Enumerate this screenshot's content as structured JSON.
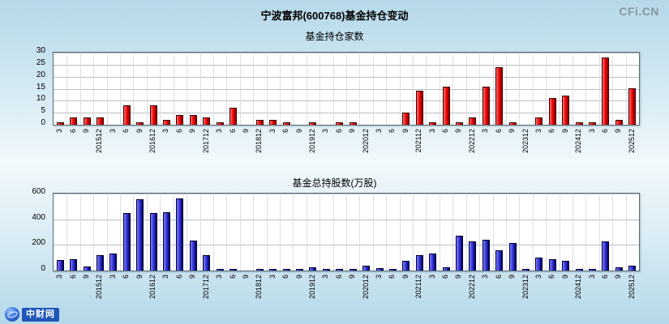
{
  "page": {
    "title": "宁波富邦(600768)基金持仓变动",
    "watermark": "CFi.CN",
    "footer_logo": "中财网"
  },
  "chart_data": [
    {
      "type": "bar",
      "title": "基金持仓家数",
      "xlabel": "",
      "ylabel": "",
      "ylim": [
        0,
        30
      ],
      "yticks": [
        0,
        5,
        10,
        15,
        20,
        25,
        30
      ],
      "grid": true,
      "legend": "none",
      "bar_style": {
        "light": "#ff7070",
        "mid": "#e80000",
        "dark": "#8a0000",
        "edge": "#3a0000"
      },
      "categories": [
        "3",
        "6",
        "9",
        "201512",
        "3",
        "6",
        "9",
        "201612",
        "3",
        "6",
        "9",
        "201712",
        "3",
        "6",
        "9",
        "201812",
        "3",
        "6",
        "9",
        "201912",
        "3",
        "6",
        "9",
        "202012",
        "3",
        "6",
        "9",
        "202112",
        "3",
        "6",
        "9",
        "202212",
        "3",
        "6",
        "9",
        "202312",
        "3",
        "6",
        "9",
        "202412",
        "3",
        "6",
        "9",
        "202512"
      ],
      "values": [
        1,
        3,
        3,
        3,
        0,
        8,
        1,
        8,
        2,
        4,
        4,
        3,
        1,
        7,
        0,
        2,
        2,
        1,
        0,
        1,
        0,
        1,
        1,
        0,
        0,
        0,
        5,
        14,
        1,
        16,
        1,
        3,
        16,
        24,
        1,
        0,
        3,
        11,
        12,
        1,
        1,
        28,
        2,
        15
      ]
    },
    {
      "type": "bar",
      "title": "基金总持股数(万股)",
      "xlabel": "",
      "ylabel": "",
      "ylim": [
        0,
        600
      ],
      "yticks": [
        0,
        200,
        400,
        600
      ],
      "grid": true,
      "legend": "none",
      "bar_style": {
        "light": "#7d7dff",
        "mid": "#2d2dcf",
        "dark": "#00005e",
        "edge": "#000030"
      },
      "categories": [
        "3",
        "6",
        "9",
        "201512",
        "3",
        "6",
        "9",
        "201612",
        "3",
        "6",
        "9",
        "201712",
        "3",
        "6",
        "9",
        "201812",
        "3",
        "6",
        "9",
        "201912",
        "3",
        "6",
        "9",
        "202012",
        "3",
        "6",
        "9",
        "202112",
        "3",
        "6",
        "9",
        "202212",
        "3",
        "6",
        "9",
        "202312",
        "3",
        "6",
        "9",
        "202412",
        "3",
        "6",
        "9",
        "202512"
      ],
      "values": [
        80,
        90,
        30,
        120,
        130,
        450,
        555,
        450,
        455,
        560,
        235,
        120,
        15,
        5,
        0,
        10,
        15,
        10,
        5,
        25,
        10,
        5,
        10,
        35,
        20,
        15,
        75,
        120,
        130,
        25,
        270,
        230,
        240,
        155,
        215,
        5,
        100,
        90,
        75,
        10,
        10,
        230,
        25,
        35
      ]
    }
  ]
}
